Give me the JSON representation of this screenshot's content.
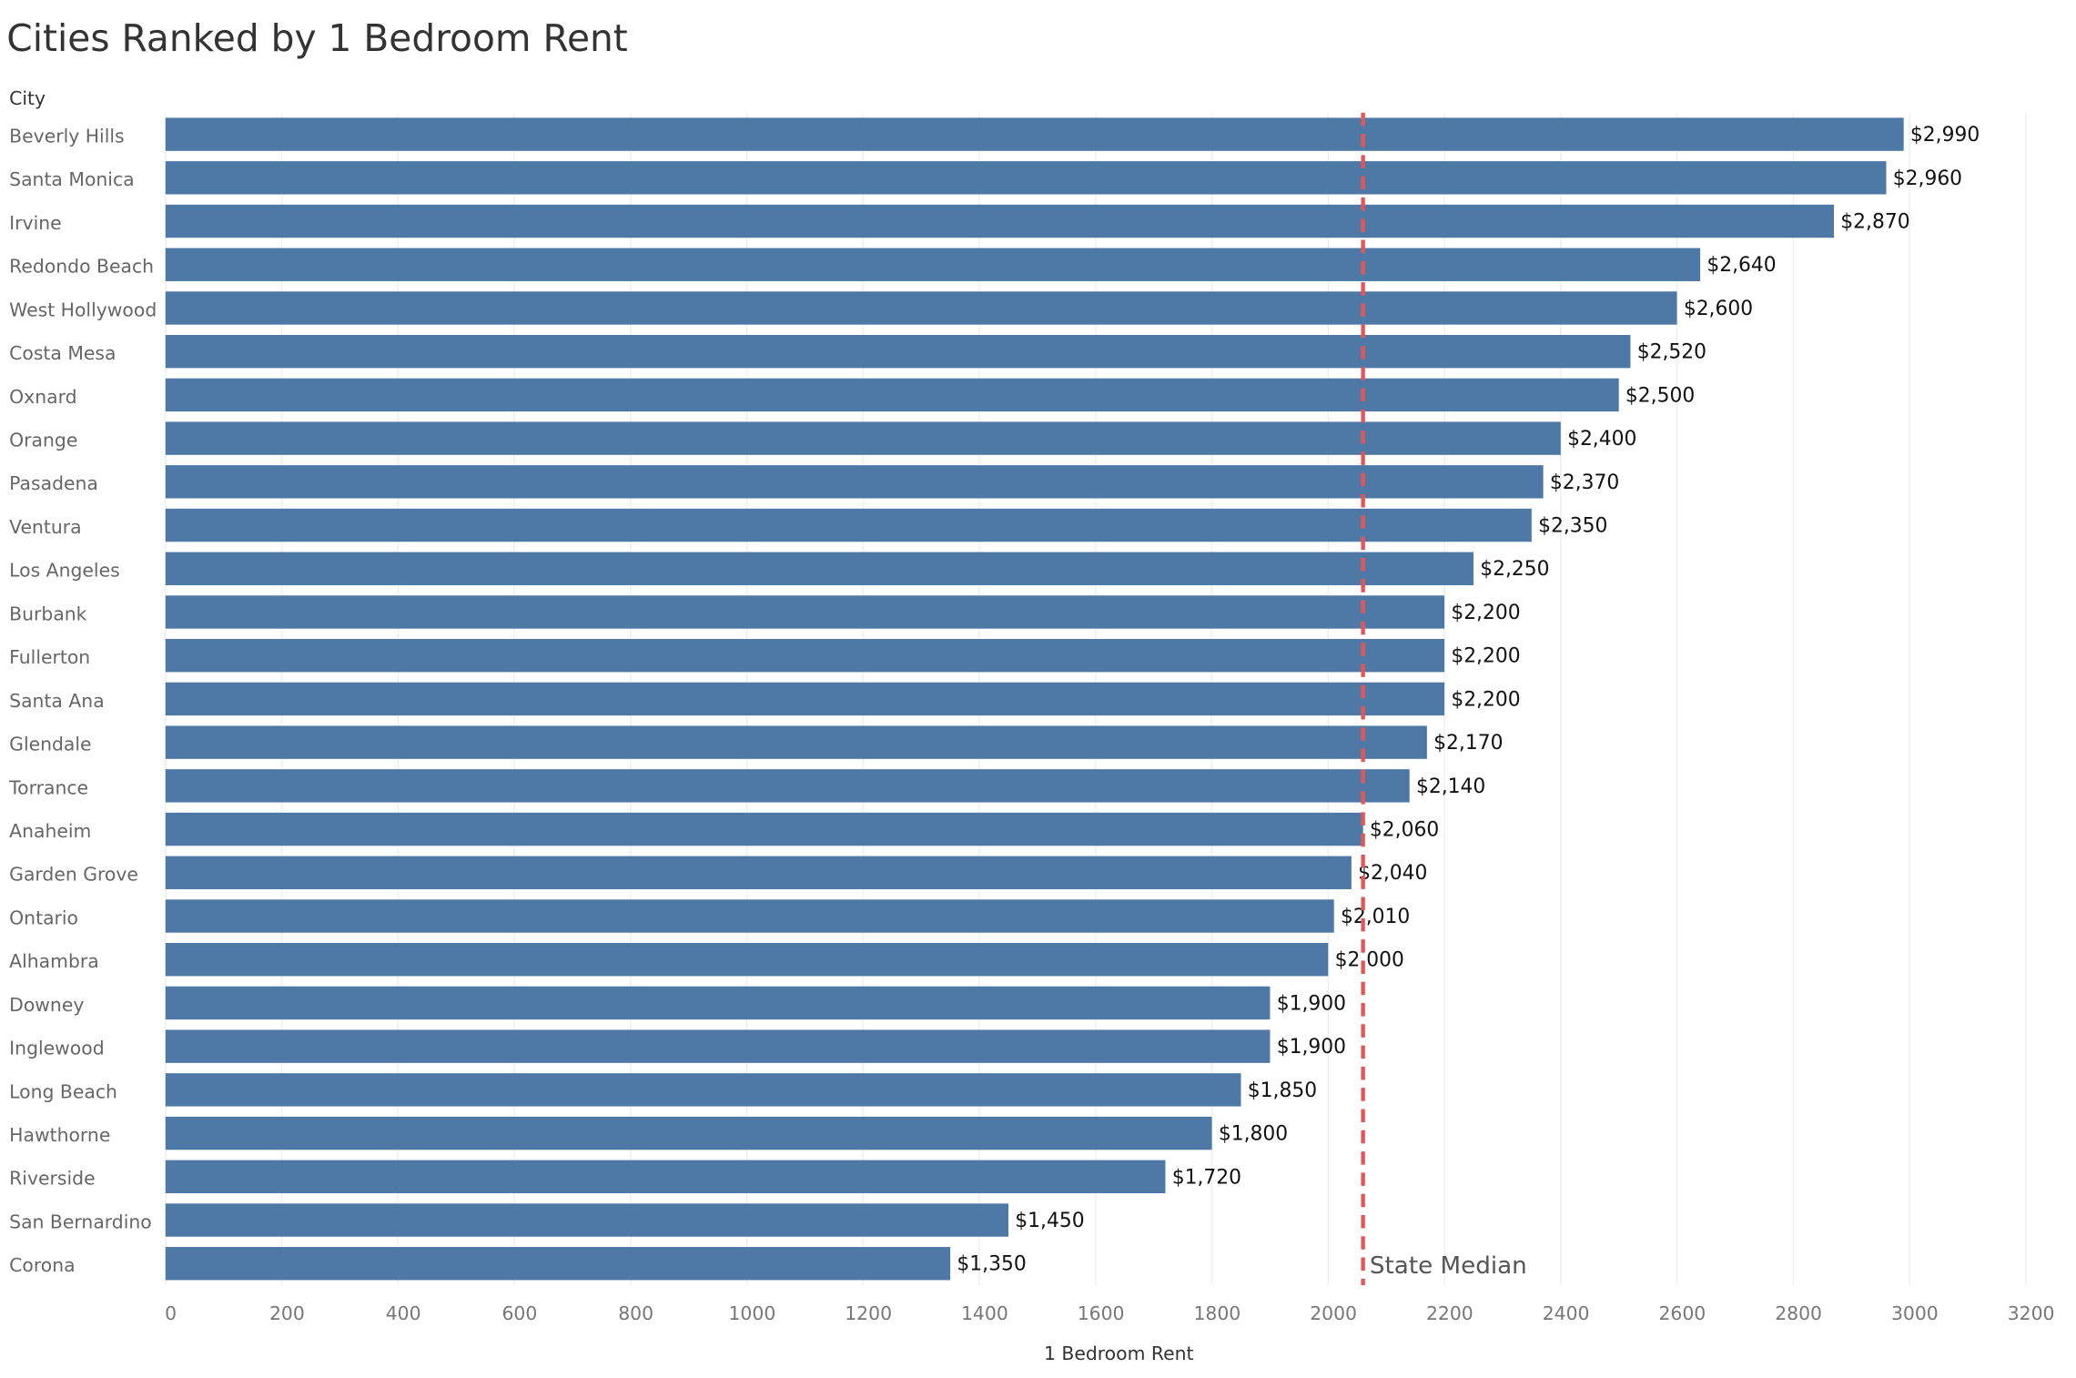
{
  "chart_data": {
    "type": "bar",
    "orientation": "horizontal",
    "title": "Cities Ranked by 1 Bedroom Rent",
    "y_axis_title": "City",
    "x_axis_title": "1 Bedroom Rent",
    "categories": [
      "Beverly Hills",
      "Santa Monica",
      "Irvine",
      "Redondo Beach",
      "West Hollywood",
      "Costa Mesa",
      "Oxnard",
      "Orange",
      "Pasadena",
      "Ventura",
      "Los Angeles",
      "Burbank",
      "Fullerton",
      "Santa Ana",
      "Glendale",
      "Torrance",
      "Anaheim",
      "Garden Grove",
      "Ontario",
      "Alhambra",
      "Downey",
      "Inglewood",
      "Long Beach",
      "Hawthorne",
      "Riverside",
      "San Bernardino",
      "Corona"
    ],
    "values": [
      2990,
      2960,
      2870,
      2640,
      2600,
      2520,
      2500,
      2400,
      2370,
      2350,
      2250,
      2200,
      2200,
      2200,
      2170,
      2140,
      2060,
      2040,
      2010,
      2000,
      1900,
      1900,
      1850,
      1800,
      1720,
      1450,
      1350
    ],
    "value_labels": [
      "$2,990",
      "$2,960",
      "$2,870",
      "$2,640",
      "$2,600",
      "$2,520",
      "$2,500",
      "$2,400",
      "$2,370",
      "$2,350",
      "$2,250",
      "$2,200",
      "$2,200",
      "$2,200",
      "$2,170",
      "$2,140",
      "$2,060",
      "$2,040",
      "$2,010",
      "$2,000",
      "$1,900",
      "$1,900",
      "$1,850",
      "$1,800",
      "$1,720",
      "$1,450",
      "$1,350"
    ],
    "color": "#4e79a7",
    "xlim": [
      0,
      3250
    ],
    "xticks": [
      0,
      200,
      400,
      600,
      800,
      1000,
      1200,
      1400,
      1600,
      1800,
      2000,
      2200,
      2400,
      2600,
      2800,
      3000,
      3200
    ],
    "grid": true,
    "reference_line": {
      "value": 2060,
      "label": "State Median",
      "color": "#e15759"
    }
  }
}
